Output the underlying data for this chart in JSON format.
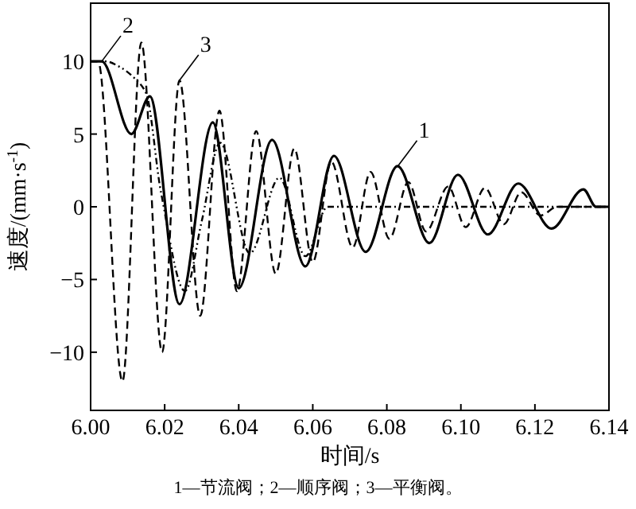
{
  "chart_data": {
    "type": "line",
    "xlabel": "时间/s",
    "ylabel": "速度/(mm·s$^{-1}$)",
    "xlim": [
      6.0,
      6.14
    ],
    "ylim": [
      -14,
      14
    ],
    "xticks": [
      {
        "value": 6.0,
        "label": "6.00"
      },
      {
        "value": 6.02,
        "label": "6.02"
      },
      {
        "value": 6.04,
        "label": "6.04"
      },
      {
        "value": 6.06,
        "label": "6.06"
      },
      {
        "value": 6.08,
        "label": "6.08"
      },
      {
        "value": 6.1,
        "label": "6.10"
      },
      {
        "value": 6.12,
        "label": "6.12"
      },
      {
        "value": 6.14,
        "label": "6.14"
      }
    ],
    "yticks": [
      -10,
      -5,
      0,
      5,
      10
    ],
    "grid": false,
    "marker": "none",
    "series": [
      {
        "color": "#000000",
        "line_style": "solid",
        "x": [
          6.0,
          6.003,
          6.011,
          6.016,
          6.024,
          6.033,
          6.04,
          6.049,
          6.058,
          6.0657,
          6.0743,
          6.0829,
          6.0915,
          6.0992,
          6.1073,
          6.1155,
          6.1245,
          6.1331,
          6.1365,
          6.14
        ],
        "values": [
          10,
          10,
          5,
          7.6,
          -6.7,
          5.8,
          -5.6,
          4.6,
          -4.1,
          3.5,
          -3.1,
          2.8,
          -2.5,
          2.2,
          -1.9,
          1.6,
          -1.5,
          1.2,
          0,
          0
        ]
      },
      {
        "color": "#000000",
        "line_style": "dotted",
        "x": [
          6.0,
          6.004,
          6.008,
          6.012,
          6.015,
          6.019,
          6.0255,
          6.03,
          6.035,
          6.043,
          6.051,
          6.058,
          6.064,
          6.14
        ],
        "values": [
          10,
          10,
          9.6,
          8.8,
          7.8,
          1,
          -5.8,
          -1,
          4.4,
          -3.2,
          2,
          -3.4,
          0,
          0
        ]
      },
      {
        "color": "#000000",
        "line_style": "dashed",
        "x": [
          6.0,
          6.002,
          6.0086,
          6.0137,
          6.0193,
          6.024,
          6.0296,
          6.0348,
          6.0395,
          6.0447,
          6.05,
          6.055,
          6.06,
          6.065,
          6.0708,
          6.0756,
          6.0807,
          6.0858,
          6.0906,
          6.0966,
          6.1013,
          6.1065,
          6.1116,
          6.1163,
          6.1215,
          6.126,
          6.14
        ],
        "values": [
          10,
          10,
          -12,
          11.3,
          -10,
          8.7,
          -7.5,
          6.6,
          -5.8,
          5.2,
          -4.6,
          4.0,
          -3.8,
          3.1,
          -2.8,
          2.4,
          -2.2,
          1.7,
          -1.7,
          1.4,
          -1.4,
          1.3,
          -1.2,
          1.0,
          -0.6,
          0,
          0
        ]
      }
    ],
    "annotations": [
      {
        "text": "1",
        "x": 6.083,
        "y": 2.8
      },
      {
        "text": "2",
        "x": 6.003,
        "y": 10
      },
      {
        "text": "3",
        "x": 6.024,
        "y": 8.7
      },
      "1—节流阀；2—顺序阀；3—平衡阀。"
    ]
  }
}
